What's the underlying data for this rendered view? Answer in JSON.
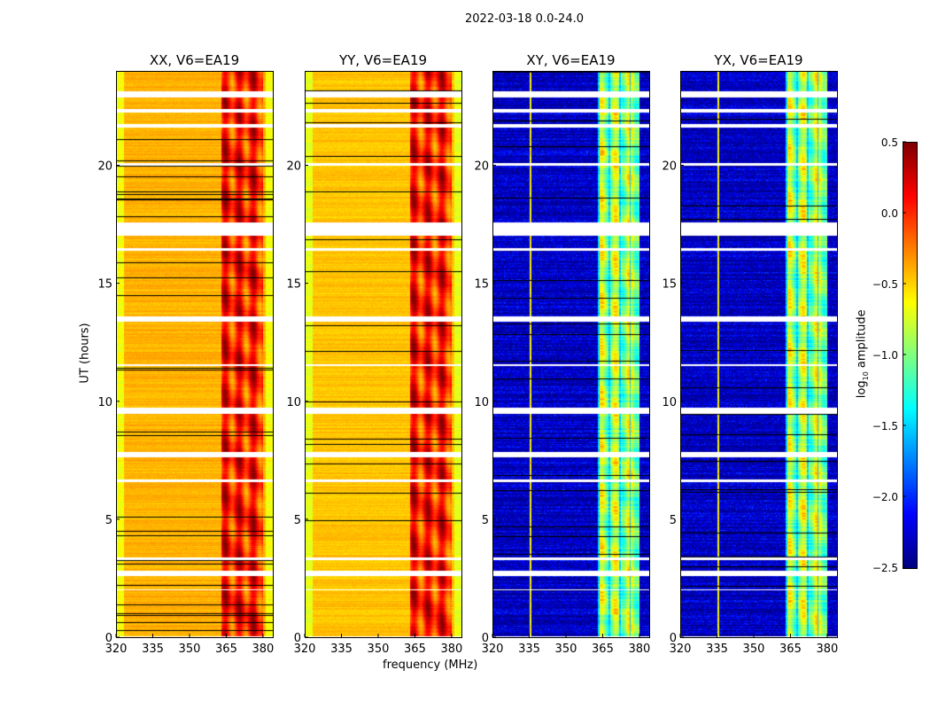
{
  "chart_data": {
    "type": "heatmap",
    "suptitle": "2022-03-18 0.0-24.0",
    "xlabel": "frequency (MHz)",
    "ylabel": "UT (hours)",
    "xlim": [
      320,
      384
    ],
    "ylim": [
      0,
      24
    ],
    "xticks": [
      320,
      335,
      350,
      365,
      380
    ],
    "yticks": [
      0,
      5,
      10,
      15,
      20
    ],
    "panels": [
      {
        "title": "XX, V6=EA19",
        "base_level": -0.4,
        "band_level": 0.05
      },
      {
        "title": "YY, V6=EA19",
        "base_level": -0.45,
        "band_level": 0.05
      },
      {
        "title": "XY, V6=EA19",
        "base_level": -2.3,
        "band_level": -0.9
      },
      {
        "title": "YX, V6=EA19",
        "base_level": -2.3,
        "band_level": -0.9
      }
    ],
    "band_range_mhz": [
      363,
      380
    ],
    "flagged_time_ranges": [
      [
        22.9,
        23.15
      ],
      [
        22.25,
        22.4
      ],
      [
        21.6,
        21.75
      ],
      [
        20.0,
        20.1
      ],
      [
        17.05,
        17.6
      ],
      [
        16.4,
        16.5
      ],
      [
        13.4,
        13.6
      ],
      [
        11.5,
        11.6
      ],
      [
        9.5,
        9.75
      ],
      [
        7.65,
        7.85
      ],
      [
        6.6,
        6.7
      ],
      [
        3.3,
        3.4
      ],
      [
        2.6,
        2.85
      ],
      [
        2.0,
        2.05
      ],
      [
        0,
        0.05
      ]
    ],
    "colorbar": {
      "label": "log10 amplitude",
      "label_main": "log",
      "label_sub": "10",
      "label_rest": " amplitude",
      "colormap": "jet",
      "range": [
        -2.5,
        0.5
      ],
      "ticks": [
        "0.5",
        "0.0",
        "−0.5",
        "−1.0",
        "−1.5",
        "−2.0",
        "−2.5"
      ]
    }
  }
}
